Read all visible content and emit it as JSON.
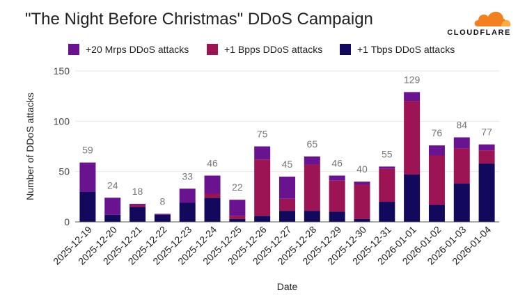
{
  "logo": {
    "text": "CLOUDFLARE",
    "cloud_color": "#f38020",
    "cloud_light_color": "#faad3f"
  },
  "colors": {
    "grid": "#e6e6e6",
    "axis": "#555555"
  },
  "chart_data": {
    "type": "bar",
    "stacked": true,
    "title": "\"The Night Before Christmas\" DDoS Campaign",
    "xlabel": "Date",
    "ylabel": "Number of DDoS attacks",
    "ylim": [
      0,
      150
    ],
    "yticks": [
      0,
      50,
      100,
      150
    ],
    "grid": true,
    "legend_position": "top",
    "categories": [
      "2025-12-19",
      "2025-12-20",
      "2025-12-21",
      "2025-12-22",
      "2025-12-23",
      "2025-12-24",
      "2025-12-25",
      "2025-12-26",
      "2025-12-27",
      "2025-12-28",
      "2025-12-29",
      "2025-12-30",
      "2025-12-31",
      "2026-01-01",
      "2026-01-02",
      "2026-01-03",
      "2026-01-04"
    ],
    "totals": [
      59,
      24,
      18,
      8,
      33,
      46,
      22,
      75,
      45,
      65,
      46,
      40,
      55,
      129,
      76,
      84,
      77
    ],
    "series": [
      {
        "name": "+1 Tbps DDoS attacks",
        "color": "#12095c",
        "values": [
          30,
          7,
          15,
          7,
          19,
          24,
          3,
          6,
          11,
          11,
          10,
          3,
          20,
          47,
          17,
          38,
          58
        ]
      },
      {
        "name": "+1 Bpps DDoS attacks",
        "color": "#9c1454",
        "values": [
          0,
          0,
          2,
          0,
          0,
          4,
          3,
          56,
          12,
          46,
          31,
          34,
          33,
          73,
          49,
          35,
          13
        ]
      },
      {
        "name": "+20 Mrps DDoS attacks",
        "color": "#6a1390",
        "values": [
          29,
          17,
          1,
          1,
          14,
          18,
          16,
          13,
          22,
          8,
          5,
          3,
          2,
          9,
          10,
          11,
          6
        ]
      }
    ],
    "legend_order": [
      "+20 Mrps DDoS attacks",
      "+1 Bpps DDoS attacks",
      "+1 Tbps DDoS attacks"
    ]
  }
}
